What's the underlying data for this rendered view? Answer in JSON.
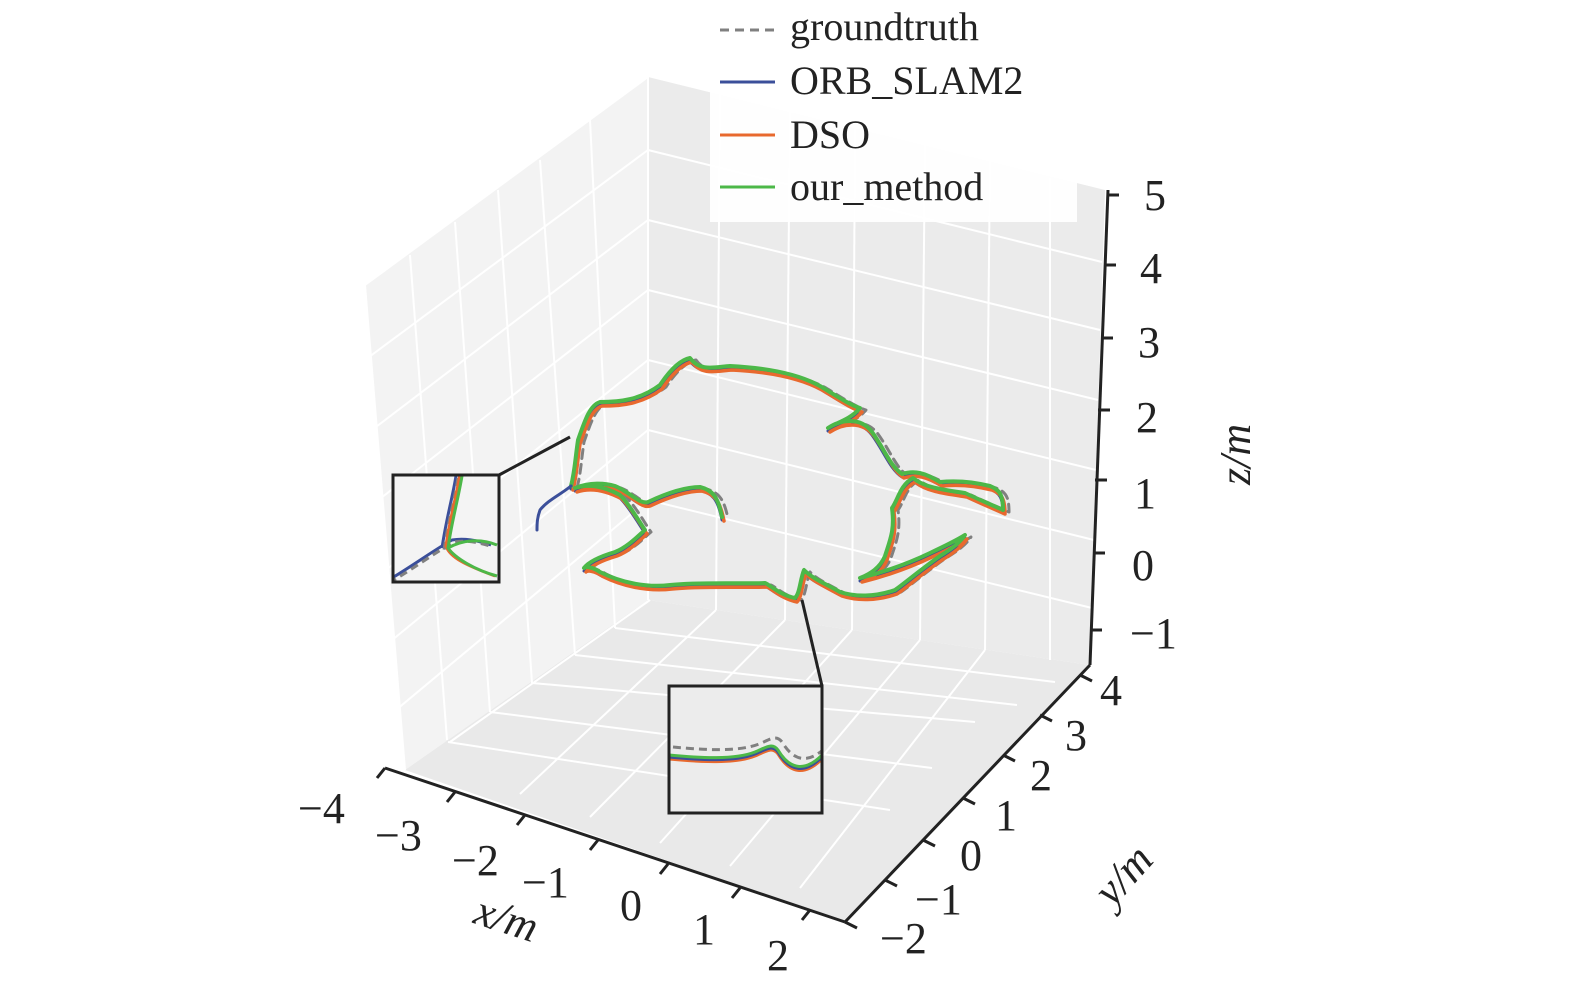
{
  "chart_data": {
    "type": "line",
    "projection": "3d",
    "title": "",
    "xlabel": "x/m",
    "ylabel": "y/m",
    "zlabel": "z/m",
    "xlim": [
      -4,
      2.5
    ],
    "ylim": [
      -2.3,
      4
    ],
    "zlim": [
      -1.5,
      5
    ],
    "x_ticks": [
      "−4",
      "−3",
      "−2",
      "−1",
      "0",
      "1",
      "2"
    ],
    "y_ticks": [
      "−2",
      "−1",
      "0",
      "1",
      "2",
      "3",
      "4"
    ],
    "z_ticks": [
      "−1",
      "0",
      "1",
      "2",
      "3",
      "4",
      "5"
    ],
    "grid": true,
    "legend_position": "top-right",
    "legend": [
      "groundtruth",
      "ORB_SLAM2",
      "DSO",
      "our_method"
    ],
    "colors": {
      "groundtruth": "#808080",
      "ORB_SLAM2": "#3b4f9a",
      "DSO": "#e8692e",
      "our_method": "#4cb848"
    },
    "series": [
      {
        "name": "groundtruth",
        "style": "dashed"
      },
      {
        "name": "ORB_SLAM2",
        "style": "solid"
      },
      {
        "name": "DSO",
        "style": "solid"
      },
      {
        "name": "our_method",
        "style": "solid"
      }
    ],
    "insets": [
      "zoom-left",
      "zoom-bottom"
    ]
  }
}
